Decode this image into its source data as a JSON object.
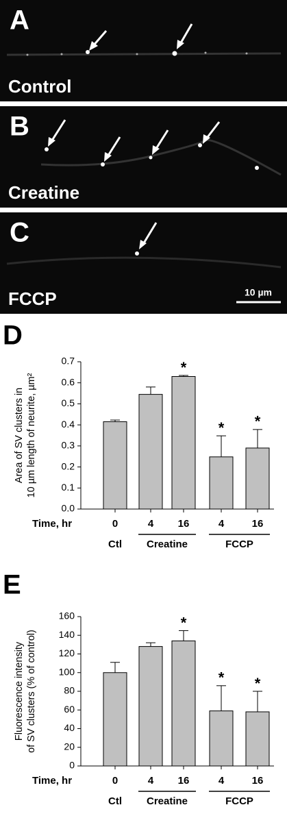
{
  "image_panels": [
    {
      "letter": "A",
      "label": "Control"
    },
    {
      "letter": "B",
      "label": "Creatine"
    },
    {
      "letter": "C",
      "label": "FCCP"
    }
  ],
  "scale_bar": "10 µm",
  "chart_data": [
    {
      "type": "bar",
      "panel": "D",
      "ylabel": [
        "Area of SV clusters in",
        "10 µm length  of neurite, µm²"
      ],
      "x_label": "Time, hr",
      "categories": [
        "0",
        "4",
        "16",
        "4",
        "16"
      ],
      "groups": [
        "Ctl",
        "Creatine",
        "Creatine",
        "FCCP",
        "FCCP"
      ],
      "values": [
        0.415,
        0.545,
        0.63,
        0.248,
        0.29
      ],
      "errors": [
        0.008,
        0.035,
        0.005,
        0.1,
        0.088
      ],
      "annotations": [
        null,
        null,
        "*",
        "*",
        "*"
      ],
      "color": "#c0c0c0",
      "ylim": [
        0,
        0.7
      ],
      "yticks": [
        {
          "value": 0,
          "label": "0.0"
        },
        0.1,
        0.2,
        0.3,
        0.4,
        0.5,
        0.6,
        0.7
      ]
    },
    {
      "type": "bar",
      "panel": "E",
      "ylabel": [
        "Fluorescence intensity",
        "of SV clusters (% of control)"
      ],
      "x_label": "Time, hr",
      "categories": [
        "0",
        "4",
        "16",
        "4",
        "16"
      ],
      "groups": [
        "Ctl",
        "Creatine",
        "Creatine",
        "FCCP",
        "FCCP"
      ],
      "values": [
        100,
        128,
        134,
        59,
        58
      ],
      "errors": [
        11,
        4,
        11,
        27,
        22
      ],
      "annotations": [
        null,
        null,
        "*",
        "*",
        "*"
      ],
      "color": "#c0c0c0",
      "ylim": [
        0,
        160
      ],
      "yticks": [
        0,
        20,
        40,
        60,
        80,
        100,
        120,
        140,
        160
      ]
    }
  ]
}
